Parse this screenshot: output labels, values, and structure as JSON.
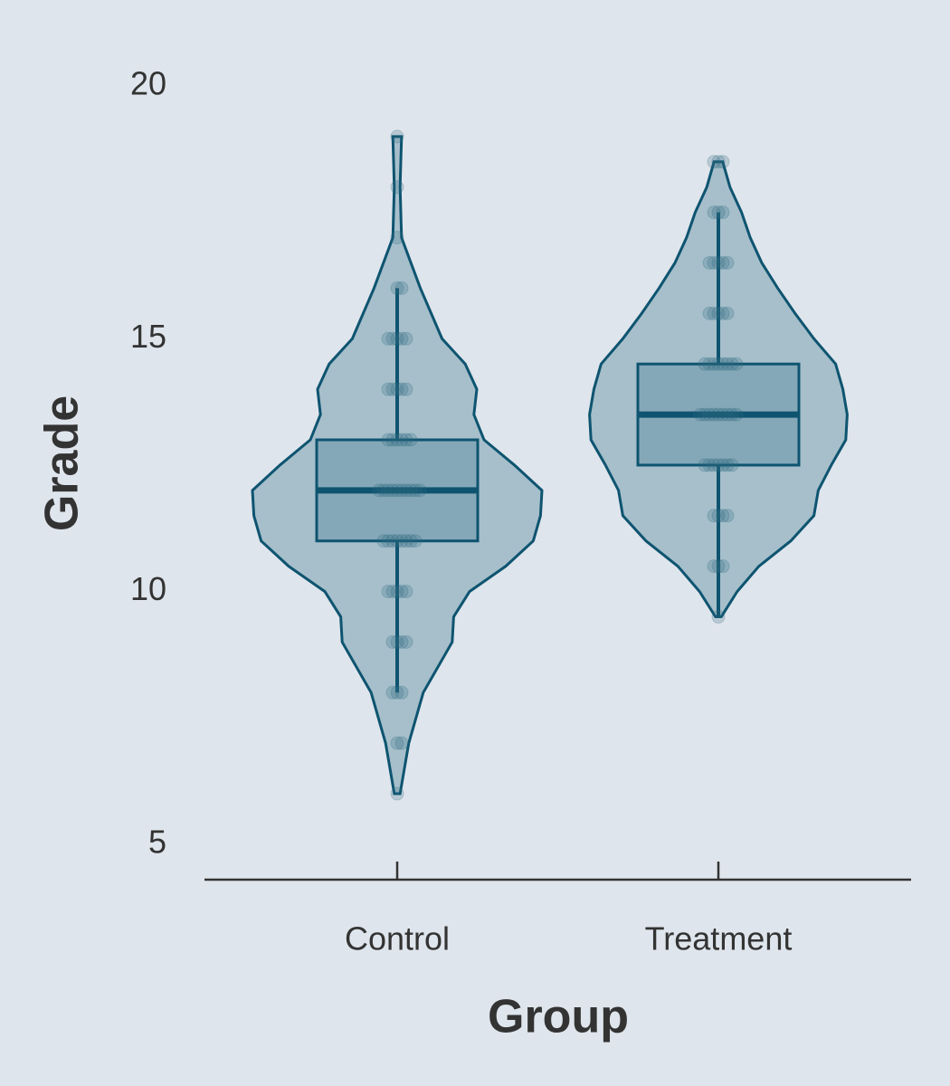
{
  "chart_data": {
    "type": "violin",
    "x_label": "Group",
    "y_label": "Grade",
    "categories": [
      "Control",
      "Treatment"
    ],
    "ylim": [
      4.3,
      21.7
    ],
    "yticks": [
      5,
      10,
      15,
      20
    ],
    "fill_color": "#a6bfcb",
    "line_color": "#0e5470",
    "box_color": "#85a8b8",
    "point_color": "#2e6a80",
    "groups": [
      {
        "name": "Control",
        "box": {
          "whisker_low": 8,
          "q1": 11,
          "median": 12,
          "q3": 13,
          "whisker_high": 16
        },
        "density": {
          "grades": [
            6,
            7,
            8,
            9,
            9.5,
            10,
            10.5,
            11,
            11.5,
            12,
            12.5,
            13,
            13.5,
            14,
            14.5,
            15,
            16,
            17,
            18,
            19
          ],
          "values": [
            0.02,
            0.08,
            0.18,
            0.38,
            0.39,
            0.5,
            0.75,
            0.94,
            0.99,
            1,
            0.81,
            0.6,
            0.53,
            0.55,
            0.47,
            0.31,
            0.16,
            0.03,
            0.02,
            0.03
          ]
        },
        "points": [
          6,
          7,
          7,
          8,
          8,
          8,
          9,
          9,
          9,
          9,
          10,
          10,
          10,
          10,
          10,
          11,
          11,
          11,
          11,
          11,
          11,
          11,
          11,
          12,
          12,
          12,
          12,
          12,
          12,
          12,
          12,
          12,
          12,
          13,
          13,
          13,
          13,
          13,
          13,
          14,
          14,
          14,
          14,
          14,
          15,
          15,
          15,
          15,
          15,
          16,
          16,
          17,
          18,
          19
        ]
      },
      {
        "name": "Treatment",
        "box": {
          "whisker_low": 9.5,
          "q1": 12.5,
          "median": 13.5,
          "q3": 14.5,
          "whisker_high": 17.5
        },
        "density": {
          "grades": [
            9.5,
            10,
            10.5,
            11,
            11.5,
            12,
            12.5,
            13,
            13.5,
            14,
            14.5,
            15,
            15.5,
            16,
            16.5,
            17,
            17.5,
            18,
            18.5
          ],
          "values": [
            0.02,
            0.13,
            0.28,
            0.5,
            0.66,
            0.69,
            0.78,
            0.88,
            0.89,
            0.86,
            0.81,
            0.66,
            0.53,
            0.41,
            0.3,
            0.22,
            0.16,
            0.08,
            0.03
          ]
        },
        "points": [
          9.5,
          10.5,
          10.5,
          10.5,
          11.5,
          11.5,
          11.5,
          11.5,
          12.5,
          12.5,
          12.5,
          12.5,
          12.5,
          12.5,
          12.5,
          13.5,
          13.5,
          13.5,
          13.5,
          13.5,
          13.5,
          13.5,
          13.5,
          13.5,
          14.5,
          14.5,
          14.5,
          14.5,
          14.5,
          14.5,
          14.5,
          14.5,
          15.5,
          15.5,
          15.5,
          15.5,
          15.5,
          16.5,
          16.5,
          16.5,
          16.5,
          16.5,
          17.5,
          17.5,
          17.5,
          18.5,
          18.5,
          18.5
        ]
      }
    ]
  }
}
